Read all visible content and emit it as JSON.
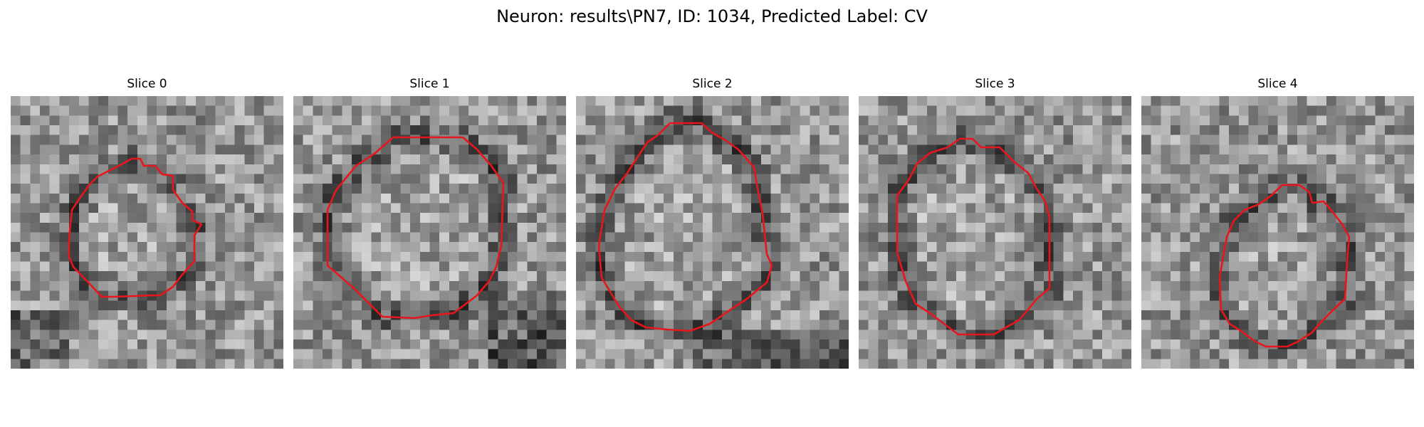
{
  "figure": {
    "title": "Neuron: results\\PN7, ID: 1034, Predicted Label: CV",
    "colormap": "gray",
    "contour_color": "#e8161c",
    "panels": [
      {
        "title": "Slice 0"
      },
      {
        "title": "Slice 1"
      },
      {
        "title": "Slice 2"
      },
      {
        "title": "Slice 3"
      },
      {
        "title": "Slice 4"
      }
    ]
  }
}
